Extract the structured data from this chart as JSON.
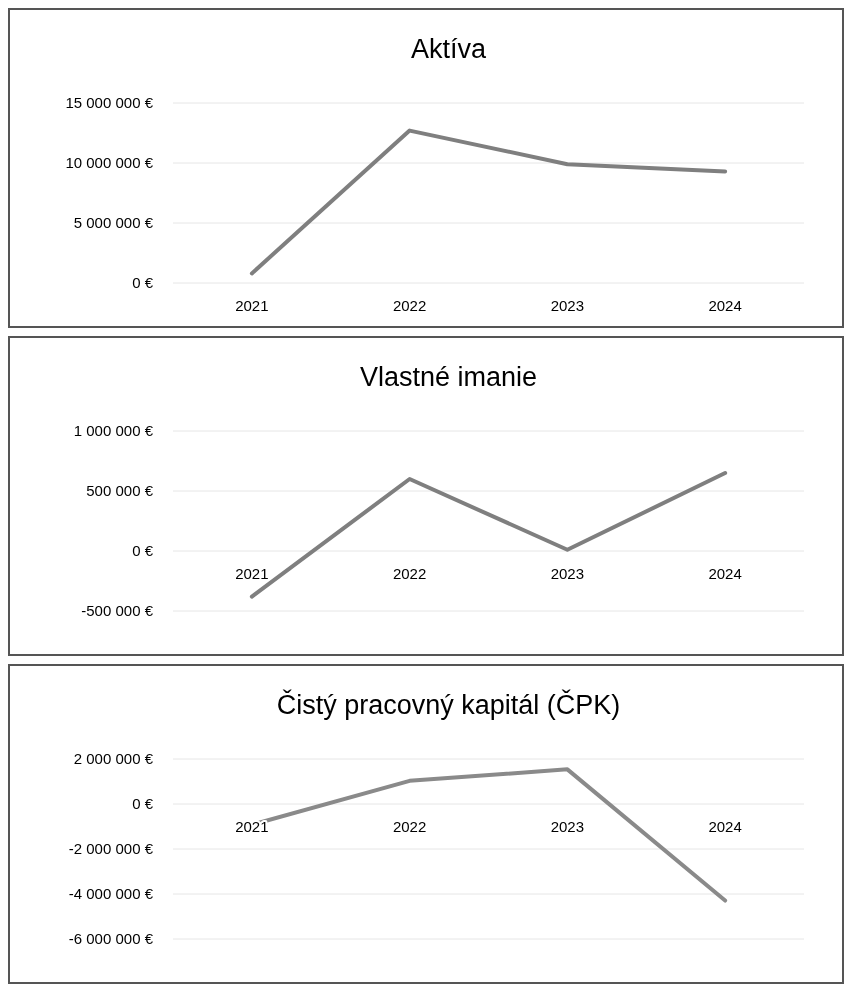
{
  "chart_data": [
    {
      "type": "line",
      "title": "Aktíva",
      "categories": [
        "2021",
        "2022",
        "2023",
        "2024"
      ],
      "series": [
        {
          "color": "#7f7f7f",
          "values": [
            800000,
            12700000,
            9900000,
            9300000
          ]
        }
      ],
      "ylim": [
        0,
        15000000
      ],
      "yticks": [
        {
          "value": 0,
          "label": "0 €"
        },
        {
          "value": 5000000,
          "label": "5 000 000 €"
        },
        {
          "value": 10000000,
          "label": "10 000 000 €"
        },
        {
          "value": 15000000,
          "label": "15 000 000 €"
        }
      ],
      "grid": "y"
    },
    {
      "type": "line",
      "title": "Vlastné imanie",
      "categories": [
        "2021",
        "2022",
        "2023",
        "2024"
      ],
      "series": [
        {
          "color": "#7f7f7f",
          "values": [
            -380000,
            600000,
            10000,
            650000
          ]
        }
      ],
      "ylim": [
        -500000,
        1000000
      ],
      "yticks": [
        {
          "value": -500000,
          "label": "-500 000 €"
        },
        {
          "value": 0,
          "label": "0 €"
        },
        {
          "value": 500000,
          "label": "500 000 €"
        },
        {
          "value": 1000000,
          "label": "1 000 000 €"
        }
      ],
      "grid": "y"
    },
    {
      "type": "line",
      "title": "Čistý pracovný kapitál (ČPK)",
      "categories": [
        "2021",
        "2022",
        "2023",
        "2024"
      ],
      "series": [
        {
          "color": "#8a8a8a",
          "values": [
            -920000,
            1030000,
            1540000,
            -4290000
          ]
        }
      ],
      "ylim": [
        -6000000,
        2000000
      ],
      "yticks": [
        {
          "value": -6000000,
          "label": "-6 000 000 €"
        },
        {
          "value": -4000000,
          "label": "-4 000 000 €"
        },
        {
          "value": -2000000,
          "label": "-2 000 000 €"
        },
        {
          "value": 0,
          "label": "0 €"
        },
        {
          "value": 2000000,
          "label": "2 000 000 €"
        }
      ],
      "grid": "y"
    }
  ]
}
